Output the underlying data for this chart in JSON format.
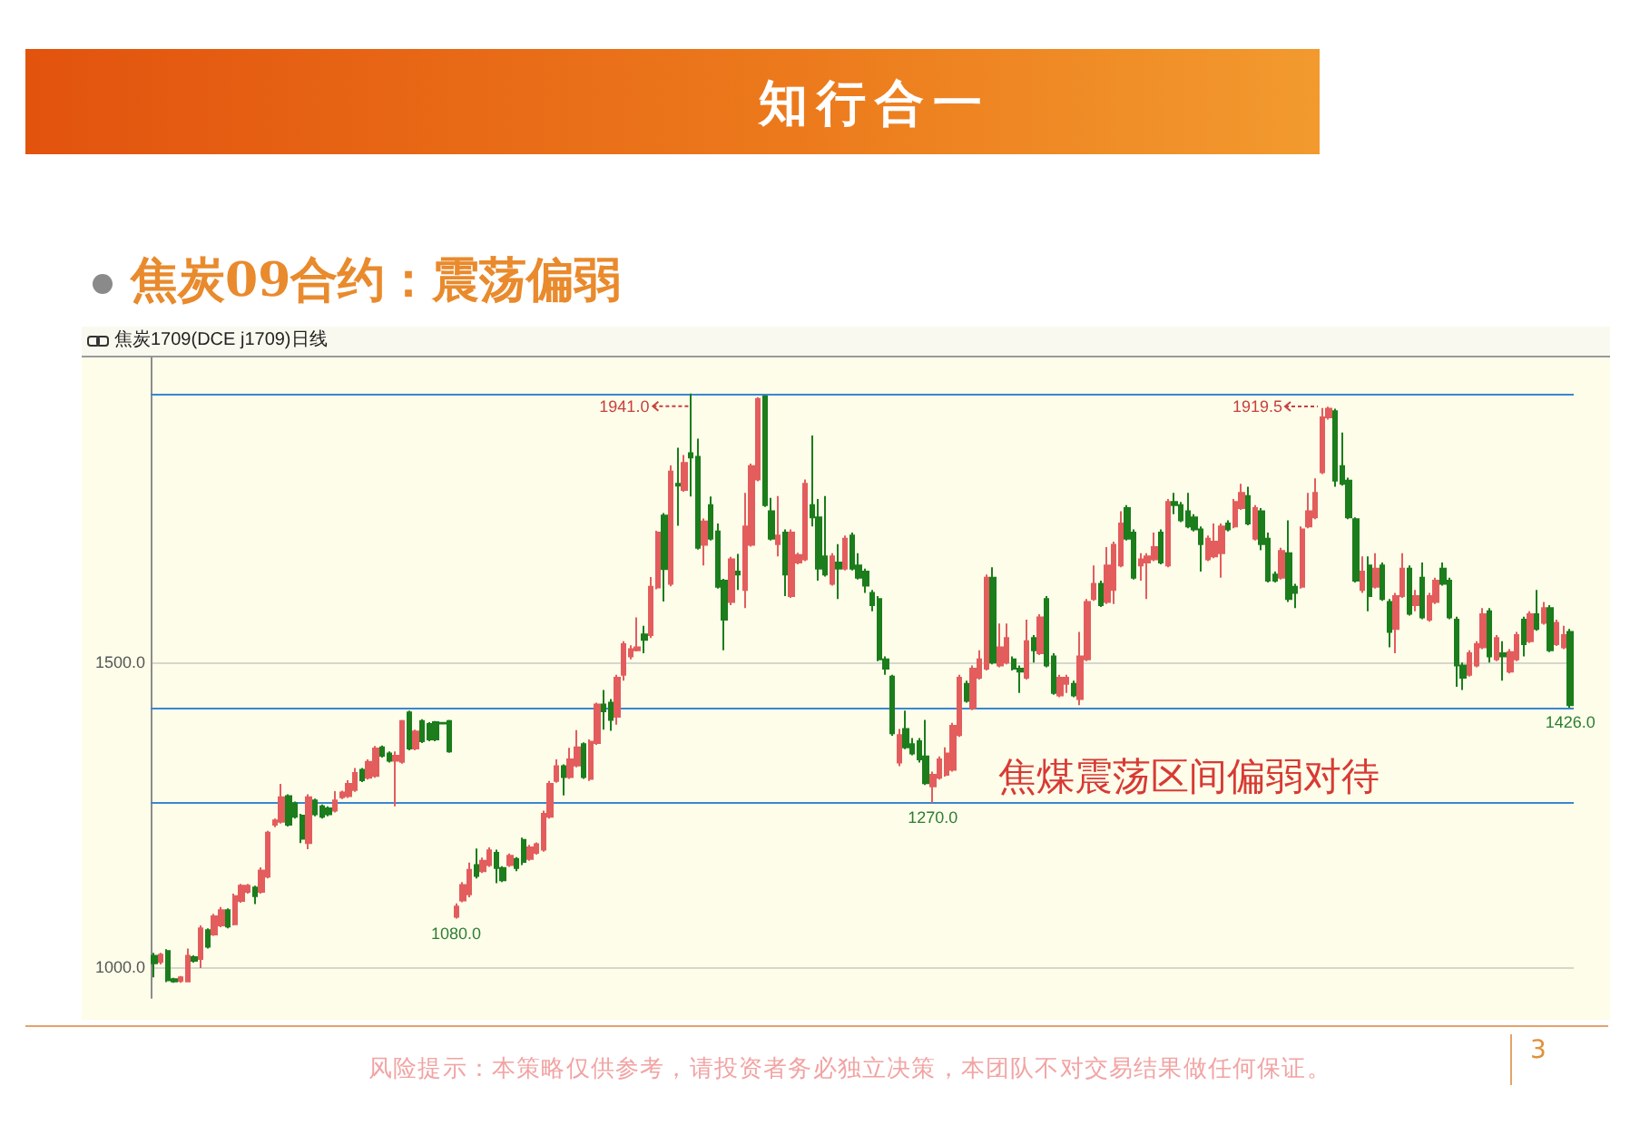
{
  "chart_data": {
    "type": "candlestick",
    "title": "焦炭09合约：震荡偏弱",
    "subtitle": "焦炭1709(DCE j1709)日线",
    "categories": [
      null,
      null,
      null,
      null,
      null,
      null,
      null,
      null,
      null,
      null,
      null,
      null,
      null,
      null,
      null,
      null,
      null,
      null,
      null,
      null,
      null,
      null,
      null,
      null,
      null,
      null,
      null,
      null,
      null,
      null,
      null,
      null,
      null,
      null,
      null,
      null,
      null,
      null,
      null,
      null,
      null,
      null,
      null,
      null,
      null,
      null,
      null,
      null,
      null,
      null,
      null,
      null,
      null,
      null,
      null,
      null,
      null,
      null,
      null,
      null,
      null,
      null,
      null,
      null,
      null,
      null,
      null,
      null,
      null,
      null,
      null,
      null,
      null,
      null,
      null,
      null,
      null,
      null,
      null,
      null,
      null,
      null,
      null,
      null,
      null,
      null,
      null,
      null,
      null,
      null,
      null,
      null,
      null,
      null,
      null,
      null,
      null,
      null,
      null,
      null,
      null,
      null,
      null,
      null,
      null,
      null,
      null,
      null,
      null,
      null,
      null,
      null,
      null,
      null,
      null,
      null,
      null,
      null,
      null,
      null,
      null,
      null,
      null,
      null,
      null,
      null,
      null,
      null,
      null,
      null,
      null,
      null,
      null,
      null,
      null,
      null,
      null,
      null,
      null,
      null,
      null,
      null,
      null,
      null,
      null,
      null,
      null,
      null,
      null,
      null,
      null,
      null,
      null,
      null,
      null,
      null,
      null,
      null,
      null,
      null,
      null,
      null,
      null,
      null,
      null,
      null,
      null,
      null,
      null,
      null,
      null,
      null,
      null,
      null,
      null,
      null,
      null,
      null,
      null,
      null,
      null,
      null,
      null,
      null,
      null,
      null,
      null,
      null,
      null,
      null,
      null,
      null,
      null,
      null,
      null,
      null,
      null,
      null,
      null,
      null,
      null,
      null,
      null,
      null,
      null,
      null,
      null,
      null,
      null,
      null,
      null,
      null
    ],
    "ohlc": [
      [
        1019,
        1024,
        984,
        1007
      ],
      [
        1009,
        1024,
        1005,
        1021
      ],
      [
        1027,
        1030,
        976,
        979
      ],
      [
        981,
        983,
        975,
        977
      ],
      [
        978,
        986,
        975,
        984
      ],
      [
        977,
        1031,
        976,
        1019
      ],
      [
        1017,
        1020,
        1008,
        1011
      ],
      [
        1014,
        1069,
        999,
        1064
      ],
      [
        1061,
        1064,
        1031,
        1034
      ],
      [
        1054,
        1088,
        1052,
        1084
      ],
      [
        1069,
        1099,
        1066,
        1094
      ],
      [
        1094,
        1097,
        1064,
        1067
      ],
      [
        1071,
        1121,
        1069,
        1117
      ],
      [
        1109,
        1137,
        1106,
        1134
      ],
      [
        1124,
        1137,
        1121,
        1134
      ],
      [
        1131,
        1134,
        1104,
        1117
      ],
      [
        1124,
        1164,
        1121,
        1159
      ],
      [
        1149,
        1224,
        1146,
        1221
      ],
      [
        1234,
        1244,
        1230,
        1241
      ],
      [
        1239,
        1301,
        1236,
        1279
      ],
      [
        1281,
        1284,
        1231,
        1234
      ],
      [
        1269,
        1272,
        1244,
        1247
      ],
      [
        1249,
        1252,
        1204,
        1211
      ],
      [
        1204,
        1284,
        1194,
        1279
      ],
      [
        1274,
        1277,
        1248,
        1251
      ],
      [
        1264,
        1267,
        1244,
        1247
      ],
      [
        1261,
        1264,
        1248,
        1251
      ],
      [
        1257,
        1289,
        1254,
        1274
      ],
      [
        1279,
        1290,
        1276,
        1287
      ],
      [
        1281,
        1307,
        1278,
        1301
      ],
      [
        1291,
        1327,
        1288,
        1319
      ],
      [
        1324,
        1327,
        1304,
        1307
      ],
      [
        1311,
        1341,
        1308,
        1337
      ],
      [
        1314,
        1363,
        1311,
        1359
      ],
      [
        1361,
        1364,
        1344,
        1347
      ],
      [
        1351,
        1354,
        1336,
        1339
      ],
      [
        1339,
        1354,
        1264,
        1347
      ],
      [
        1337,
        1406,
        1334,
        1404
      ],
      [
        1418,
        1421,
        1356,
        1359
      ],
      [
        1359,
        1390,
        1356,
        1387
      ],
      [
        1404,
        1407,
        1368,
        1371
      ],
      [
        1399,
        1402,
        1371,
        1374
      ],
      [
        1402,
        1404,
        1371,
        1374
      ],
      [
        1401,
        1402,
        1399,
        1400
      ],
      [
        1404,
        1406,
        1352,
        1354
      ],
      [
        1083,
        1105,
        1080,
        1100
      ],
      [
        1110,
        1140,
        1107,
        1135
      ],
      [
        1120,
        1172,
        1115,
        1160
      ],
      [
        1168,
        1195,
        1146,
        1150
      ],
      [
        1158,
        1180,
        1155,
        1175
      ],
      [
        1168,
        1197,
        1165,
        1192
      ],
      [
        1188,
        1193,
        1138,
        1163
      ],
      [
        1163,
        1166,
        1140,
        1143
      ],
      [
        1168,
        1187,
        1165,
        1183
      ],
      [
        1178,
        1181,
        1158,
        1163
      ],
      [
        1209,
        1213,
        1168,
        1173
      ],
      [
        1178,
        1201,
        1175,
        1197
      ],
      [
        1188,
        1205,
        1185,
        1202
      ],
      [
        1193,
        1257,
        1190,
        1252
      ],
      [
        1247,
        1306,
        1244,
        1301
      ],
      [
        1306,
        1341,
        1303,
        1330
      ],
      [
        1330,
        1333,
        1282,
        1312
      ],
      [
        1312,
        1360,
        1309,
        1341
      ],
      [
        1331,
        1389,
        1328,
        1361
      ],
      [
        1366,
        1369,
        1309,
        1312
      ],
      [
        1309,
        1374,
        1306,
        1370
      ],
      [
        1368,
        1434,
        1365,
        1431
      ],
      [
        1431,
        1455,
        1390,
        1420
      ],
      [
        1434,
        1440,
        1388,
        1406
      ],
      [
        1411,
        1480,
        1398,
        1475
      ],
      [
        1480,
        1535,
        1470,
        1530
      ],
      [
        1510,
        1528,
        1505,
        1522
      ],
      [
        1520,
        1574,
        1518,
        1525
      ],
      [
        1546,
        1560,
        1515,
        1537
      ],
      [
        1545,
        1640,
        1540,
        1624
      ],
      [
        1623,
        1716,
        1620,
        1713
      ],
      [
        1741,
        1745,
        1600,
        1653
      ],
      [
        1629,
        1823,
        1625,
        1813
      ],
      [
        1793,
        1852,
        1724,
        1790
      ],
      [
        1783,
        1840,
        1780,
        1827
      ],
      [
        1843,
        1941,
        1772,
        1836
      ],
      [
        1837,
        1867,
        1685,
        1688
      ],
      [
        1693,
        1736,
        1659,
        1731
      ],
      [
        1758,
        1772,
        1700,
        1703
      ],
      [
        1715,
        1728,
        1621,
        1624
      ],
      [
        1634,
        1637,
        1520,
        1570
      ],
      [
        1599,
        1673,
        1594,
        1669
      ],
      [
        1649,
        1678,
        1619,
        1644
      ],
      [
        1619,
        1778,
        1589,
        1723
      ],
      [
        1693,
        1826,
        1690,
        1822
      ],
      [
        1800,
        1935,
        1797,
        1932
      ],
      [
        1936,
        1938,
        1755,
        1758
      ],
      [
        1748,
        1770,
        1700,
        1703
      ],
      [
        1694,
        1773,
        1674,
        1708
      ],
      [
        1713,
        1718,
        1609,
        1644
      ],
      [
        1609,
        1718,
        1606,
        1713
      ],
      [
        1664,
        1680,
        1661,
        1676
      ],
      [
        1669,
        1800,
        1666,
        1793
      ],
      [
        1758,
        1872,
        1723,
        1738
      ],
      [
        1738,
        1768,
        1634,
        1654
      ],
      [
        1674,
        1773,
        1641,
        1644
      ],
      [
        1629,
        1679,
        1626,
        1674
      ],
      [
        1664,
        1694,
        1604,
        1654
      ],
      [
        1654,
        1708,
        1651,
        1703
      ],
      [
        1708,
        1713,
        1651,
        1654
      ],
      [
        1659,
        1679,
        1636,
        1639
      ],
      [
        1649,
        1654,
        1614,
        1626
      ],
      [
        1614,
        1619,
        1584,
        1594
      ],
      [
        1604,
        1609,
        1502,
        1505
      ],
      [
        1505,
        1510,
        1480,
        1490
      ],
      [
        1477,
        1480,
        1380,
        1384
      ],
      [
        1336,
        1391,
        1330,
        1381
      ],
      [
        1391,
        1421,
        1358,
        1361
      ],
      [
        1366,
        1376,
        1348,
        1351
      ],
      [
        1371,
        1376,
        1336,
        1341
      ],
      [
        1346,
        1406,
        1299,
        1302
      ],
      [
        1297,
        1321,
        1270,
        1316
      ],
      [
        1311,
        1346,
        1308,
        1341
      ],
      [
        1316,
        1361,
        1313,
        1351
      ],
      [
        1324,
        1401,
        1321,
        1396
      ],
      [
        1381,
        1480,
        1378,
        1475
      ],
      [
        1465,
        1470,
        1434,
        1437
      ],
      [
        1425,
        1495,
        1422,
        1490
      ],
      [
        1475,
        1520,
        1472,
        1505
      ],
      [
        1490,
        1644,
        1487,
        1639
      ],
      [
        1639,
        1656,
        1497,
        1500
      ],
      [
        1495,
        1564,
        1492,
        1525
      ],
      [
        1500,
        1564,
        1497,
        1540
      ],
      [
        1505,
        1510,
        1487,
        1490
      ],
      [
        1490,
        1495,
        1450,
        1485
      ],
      [
        1475,
        1570,
        1472,
        1535
      ],
      [
        1540,
        1545,
        1500,
        1520
      ],
      [
        1515,
        1579,
        1512,
        1574
      ],
      [
        1604,
        1609,
        1492,
        1495
      ],
      [
        1510,
        1515,
        1447,
        1450
      ],
      [
        1446,
        1480,
        1443,
        1475
      ],
      [
        1465,
        1480,
        1450,
        1475
      ],
      [
        1465,
        1470,
        1443,
        1446
      ],
      [
        1440,
        1550,
        1430,
        1510
      ],
      [
        1505,
        1604,
        1502,
        1599
      ],
      [
        1604,
        1659,
        1601,
        1629
      ],
      [
        1629,
        1634,
        1591,
        1594
      ],
      [
        1599,
        1689,
        1596,
        1659
      ],
      [
        1619,
        1698,
        1596,
        1693
      ],
      [
        1659,
        1748,
        1656,
        1728
      ],
      [
        1753,
        1758,
        1700,
        1703
      ],
      [
        1713,
        1718,
        1636,
        1639
      ],
      [
        1659,
        1679,
        1634,
        1669
      ],
      [
        1664,
        1679,
        1604,
        1674
      ],
      [
        1669,
        1713,
        1666,
        1689
      ],
      [
        1713,
        1718,
        1661,
        1664
      ],
      [
        1659,
        1768,
        1656,
        1763
      ],
      [
        1763,
        1778,
        1743,
        1758
      ],
      [
        1758,
        1763,
        1730,
        1733
      ],
      [
        1748,
        1778,
        1720,
        1723
      ],
      [
        1738,
        1743,
        1715,
        1718
      ],
      [
        1718,
        1723,
        1649,
        1694
      ],
      [
        1669,
        1708,
        1666,
        1703
      ],
      [
        1674,
        1728,
        1671,
        1698
      ],
      [
        1679,
        1728,
        1639,
        1723
      ],
      [
        1728,
        1733,
        1715,
        1718
      ],
      [
        1723,
        1768,
        1720,
        1763
      ],
      [
        1753,
        1793,
        1750,
        1778
      ],
      [
        1773,
        1788,
        1725,
        1728
      ],
      [
        1703,
        1758,
        1700,
        1753
      ],
      [
        1748,
        1753,
        1684,
        1694
      ],
      [
        1703,
        1713,
        1631,
        1634
      ],
      [
        1644,
        1649,
        1631,
        1634
      ],
      [
        1639,
        1688,
        1636,
        1683
      ],
      [
        1679,
        1733,
        1599,
        1604
      ],
      [
        1624,
        1629,
        1589,
        1614
      ],
      [
        1624,
        1723,
        1621,
        1718
      ],
      [
        1723,
        1778,
        1720,
        1748
      ],
      [
        1738,
        1802,
        1735,
        1778
      ],
      [
        1812,
        1917,
        1809,
        1902
      ],
      [
        1902,
        1919.5,
        1898,
        1916
      ],
      [
        1912,
        1916,
        1788,
        1798
      ],
      [
        1822,
        1877,
        1790,
        1793
      ],
      [
        1798,
        1803,
        1735,
        1738
      ],
      [
        1735,
        1738,
        1631,
        1634
      ],
      [
        1619,
        1674,
        1614,
        1649
      ],
      [
        1659,
        1674,
        1584,
        1609
      ],
      [
        1624,
        1679,
        1621,
        1654
      ],
      [
        1659,
        1664,
        1601,
        1604
      ],
      [
        1599,
        1604,
        1525,
        1550
      ],
      [
        1555,
        1614,
        1515,
        1609
      ],
      [
        1609,
        1679,
        1606,
        1654
      ],
      [
        1654,
        1659,
        1577,
        1580
      ],
      [
        1594,
        1619,
        1584,
        1609
      ],
      [
        1639,
        1664,
        1571,
        1574
      ],
      [
        1570,
        1614,
        1567,
        1609
      ],
      [
        1599,
        1639,
        1596,
        1634
      ],
      [
        1654,
        1664,
        1626,
        1629
      ],
      [
        1634,
        1639,
        1571,
        1574
      ],
      [
        1570,
        1575,
        1460,
        1495
      ],
      [
        1495,
        1500,
        1455,
        1475
      ],
      [
        1480,
        1520,
        1477,
        1515
      ],
      [
        1495,
        1535,
        1492,
        1530
      ],
      [
        1525,
        1589,
        1522,
        1579
      ],
      [
        1584,
        1589,
        1500,
        1510
      ],
      [
        1505,
        1545,
        1502,
        1540
      ],
      [
        1515,
        1535,
        1470,
        1510
      ],
      [
        1485,
        1522,
        1482,
        1517
      ],
      [
        1505,
        1550,
        1502,
        1545
      ],
      [
        1570,
        1575,
        1510,
        1530
      ],
      [
        1535,
        1584,
        1532,
        1579
      ],
      [
        1579,
        1619,
        1552,
        1555
      ],
      [
        1565,
        1599,
        1562,
        1589
      ],
      [
        1589,
        1594,
        1517,
        1520
      ],
      [
        1530,
        1570,
        1527,
        1565
      ],
      [
        1525,
        1560,
        1522,
        1545
      ],
      [
        1550,
        1555,
        1426,
        1430
      ]
    ],
    "colors": [
      "#1b7d1b",
      "#e35d5d",
      "#1b7d1b",
      "#1b7d1b",
      "#e35d5d",
      "#e35d5d",
      "#1b7d1b",
      "#e35d5d",
      "#1b7d1b",
      "#e35d5d",
      "#e35d5d",
      "#1b7d1b",
      "#e35d5d",
      "#e35d5d",
      "#e35d5d",
      "#1b7d1b",
      "#e35d5d",
      "#e35d5d",
      "#e35d5d",
      "#e35d5d",
      "#1b7d1b",
      "#1b7d1b",
      "#1b7d1b",
      "#e35d5d",
      "#1b7d1b",
      "#1b7d1b",
      "#1b7d1b",
      "#e35d5d",
      "#e35d5d",
      "#e35d5d",
      "#e35d5d",
      "#1b7d1b",
      "#e35d5d",
      "#e35d5d",
      "#1b7d1b",
      "#1b7d1b",
      "#e35d5d",
      "#e35d5d",
      "#1b7d1b",
      "#e35d5d",
      "#1b7d1b",
      "#1b7d1b",
      "#1b7d1b",
      "#1b7d1b",
      "#1b7d1b",
      "#e35d5d",
      "#e35d5d",
      "#e35d5d",
      "#1b7d1b",
      "#e35d5d",
      "#e35d5d",
      "#1b7d1b",
      "#1b7d1b",
      "#e35d5d",
      "#1b7d1b",
      "#1b7d1b",
      "#e35d5d",
      "#e35d5d",
      "#e35d5d",
      "#e35d5d",
      "#e35d5d",
      "#1b7d1b",
      "#e35d5d",
      "#e35d5d",
      "#1b7d1b",
      "#e35d5d",
      "#e35d5d",
      "#1b7d1b",
      "#1b7d1b",
      "#e35d5d",
      "#e35d5d",
      "#e35d5d",
      "#e35d5d",
      "#1b7d1b",
      "#e35d5d",
      "#e35d5d",
      "#1b7d1b",
      "#e35d5d",
      "#1b7d1b",
      "#e35d5d",
      "#1b7d1b",
      "#1b7d1b",
      "#e35d5d",
      "#1b7d1b",
      "#1b7d1b",
      "#1b7d1b",
      "#e35d5d",
      "#1b7d1b",
      "#e35d5d",
      "#e35d5d",
      "#e35d5d",
      "#1b7d1b",
      "#1b7d1b",
      "#e35d5d",
      "#1b7d1b",
      "#e35d5d",
      "#e35d5d",
      "#e35d5d",
      "#1b7d1b",
      "#1b7d1b",
      "#1b7d1b",
      "#e35d5d",
      "#1b7d1b",
      "#e35d5d",
      "#1b7d1b",
      "#1b7d1b",
      "#1b7d1b",
      "#1b7d1b",
      "#1b7d1b",
      "#1b7d1b",
      "#1b7d1b",
      "#e35d5d",
      "#1b7d1b",
      "#1b7d1b",
      "#1b7d1b",
      "#1b7d1b",
      "#e35d5d",
      "#e35d5d",
      "#e35d5d",
      "#e35d5d",
      "#e35d5d",
      "#1b7d1b",
      "#e35d5d",
      "#e35d5d",
      "#e35d5d",
      "#1b7d1b",
      "#e35d5d",
      "#e35d5d",
      "#1b7d1b",
      "#1b7d1b",
      "#e35d5d",
      "#1b7d1b",
      "#e35d5d",
      "#1b7d1b",
      "#1b7d1b",
      "#e35d5d",
      "#e35d5d",
      "#1b7d1b",
      "#e35d5d",
      "#e35d5d",
      "#e35d5d",
      "#1b7d1b",
      "#e35d5d",
      "#e35d5d",
      "#e35d5d",
      "#1b7d1b",
      "#1b7d1b",
      "#e35d5d",
      "#e35d5d",
      "#e35d5d",
      "#1b7d1b",
      "#e35d5d",
      "#1b7d1b",
      "#1b7d1b",
      "#1b7d1b",
      "#1b7d1b",
      "#1b7d1b",
      "#e35d5d",
      "#e35d5d",
      "#e35d5d",
      "#1b7d1b",
      "#e35d5d",
      "#e35d5d",
      "#1b7d1b",
      "#e35d5d",
      "#1b7d1b",
      "#1b7d1b",
      "#1b7d1b",
      "#e35d5d",
      "#1b7d1b",
      "#1b7d1b",
      "#e35d5d",
      "#e35d5d",
      "#e35d5d",
      "#e35d5d",
      "#e35d5d",
      "#1b7d1b",
      "#1b7d1b",
      "#1b7d1b",
      "#1b7d1b",
      "#e35d5d",
      "#1b7d1b",
      "#e35d5d",
      "#1b7d1b",
      "#1b7d1b",
      "#e35d5d",
      "#e35d5d",
      "#1b7d1b",
      "#e35d5d",
      "#1b7d1b",
      "#e35d5d",
      "#e35d5d",
      "#1b7d1b",
      "#1b7d1b",
      "#1b7d1b",
      "#1b7d1b",
      "#e35d5d",
      "#e35d5d",
      "#e35d5d",
      "#1b7d1b",
      "#e35d5d",
      "#1b7d1b",
      "#e35d5d",
      "#e35d5d",
      "#1b7d1b",
      "#e35d5d",
      "#1b7d1b",
      "#e35d5d",
      "#1b7d1b",
      "#e35d5d",
      "#e35d5d",
      "#1b7d1b"
    ],
    "ylim": [
      950,
      2000
    ],
    "yticks": [
      {
        "value": 1000,
        "label": "1000.0"
      },
      {
        "value": 1500,
        "label": "1500.0"
      }
    ],
    "grid": "y",
    "tick_labels": "y",
    "ref_lines": [
      {
        "axis": "y",
        "value": 1941,
        "color": "#3a86d0"
      },
      {
        "axis": "y",
        "value": 1426,
        "color": "#3a86d0"
      },
      {
        "axis": "y",
        "value": 1270,
        "color": "#3a86d0"
      }
    ],
    "annotations": [
      "知行合一",
      "焦煤震荡区间偏弱对待",
      {
        "text": "1941.0",
        "y": 1941
      },
      "1919.5",
      {
        "text": "1270.0",
        "y": 1270
      },
      {
        "text": "1080.0",
        "y": 1080
      },
      {
        "text": "1426.0",
        "y": 1426
      },
      "风险提示：本策略仅供参考，请投资者务必独立决策，本团队不对交易结果做任何保证。",
      "3"
    ]
  }
}
